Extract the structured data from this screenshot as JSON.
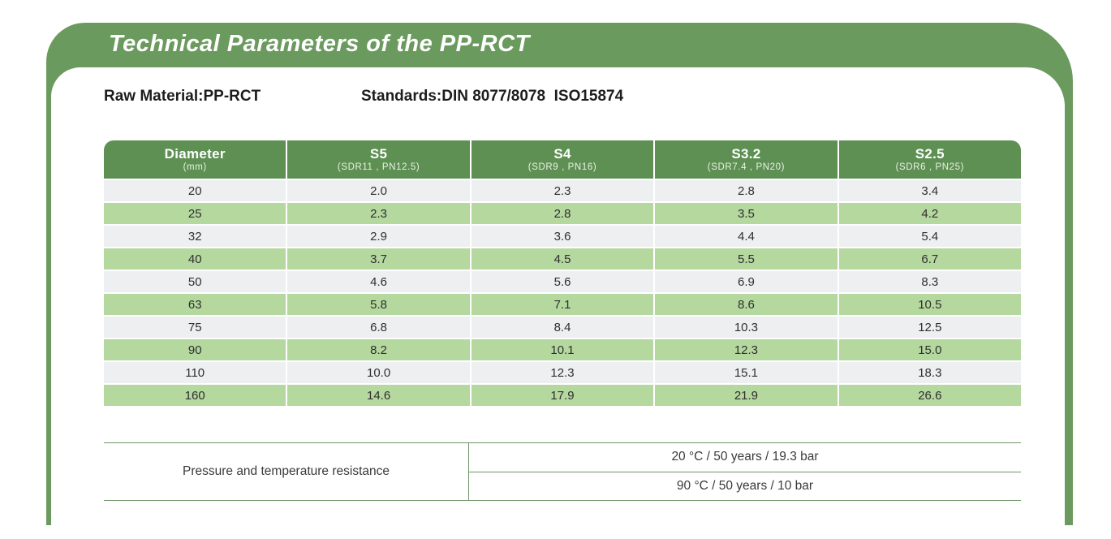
{
  "page": {
    "title": "Technical Parameters of the PP-RCT",
    "raw_material": "Raw Material:PP-RCT",
    "standards": "Standards:DIN 8077/8078  ISO15874"
  },
  "colors": {
    "frame_green": "#6b9a5e",
    "header_green": "#5e9053",
    "row_green": "#b4d89e",
    "row_gray": "#edeff1",
    "line_green": "#71966a"
  },
  "table": {
    "columns": [
      {
        "label": "Diameter",
        "sub": "(mm)"
      },
      {
        "label": "S5",
        "sub": "(SDR11 , PN12.5)"
      },
      {
        "label": "S4",
        "sub": "(SDR9 , PN16)"
      },
      {
        "label": "S3.2",
        "sub": "(SDR7.4 , PN20)"
      },
      {
        "label": "S2.5",
        "sub": "(SDR6 , PN25)"
      }
    ],
    "rows": [
      [
        "20",
        "2.0",
        "2.3",
        "2.8",
        "3.4"
      ],
      [
        "25",
        "2.3",
        "2.8",
        "3.5",
        "4.2"
      ],
      [
        "32",
        "2.9",
        "3.6",
        "4.4",
        "5.4"
      ],
      [
        "40",
        "3.7",
        "4.5",
        "5.5",
        "6.7"
      ],
      [
        "50",
        "4.6",
        "5.6",
        "6.9",
        "8.3"
      ],
      [
        "63",
        "5.8",
        "7.1",
        "8.6",
        "10.5"
      ],
      [
        "75",
        "6.8",
        "8.4",
        "10.3",
        "12.5"
      ],
      [
        "90",
        "8.2",
        "10.1",
        "12.3",
        "15.0"
      ],
      [
        "110",
        "10.0",
        "12.3",
        "15.1",
        "18.3"
      ],
      [
        "160",
        "14.6",
        "17.9",
        "21.9",
        "26.6"
      ]
    ]
  },
  "pressure_table": {
    "row_label": "Pressure and temperature resistance",
    "values": [
      "20 °C / 50 years / 19.3 bar",
      "90 °C / 50 years / 10 bar"
    ]
  }
}
